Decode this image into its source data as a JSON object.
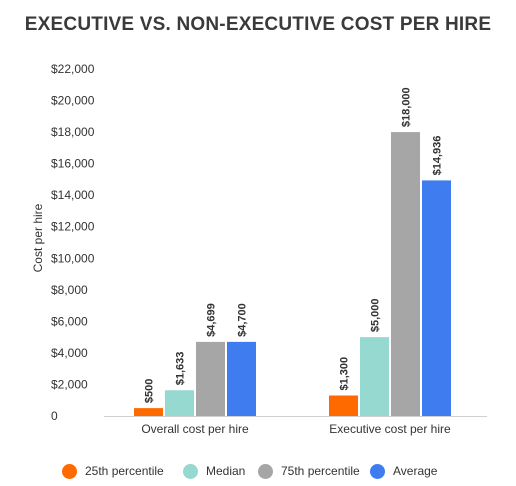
{
  "title": "EXECUTIVE VS. NON-EXECUTIVE COST PER HIRE",
  "chart_data": {
    "type": "bar",
    "title": "EXECUTIVE VS. NON-EXECUTIVE COST PER HIRE",
    "xlabel": "",
    "ylabel": "Cost per hire",
    "ylim": [
      0,
      22000
    ],
    "yticks": [
      0,
      2000,
      4000,
      6000,
      8000,
      10000,
      12000,
      14000,
      16000,
      18000,
      20000,
      22000
    ],
    "ytick_labels": [
      "0",
      "$2,000",
      "$4,000",
      "$6,000",
      "$8,000",
      "$10,000",
      "$12,000",
      "$14,000",
      "$16,000",
      "$18,000",
      "$20,000",
      "$22,000"
    ],
    "grid": false,
    "legend_position": "bottom",
    "categories": [
      "Overall cost per hire",
      "Executive cost per hire"
    ],
    "series": [
      {
        "name": "25th percentile",
        "color": "#ff6a00",
        "values": [
          500,
          1300
        ],
        "labels": [
          "$500",
          "$1,300"
        ]
      },
      {
        "name": "Median",
        "color": "#96d9d1",
        "values": [
          1633,
          5000
        ],
        "labels": [
          "$1,633",
          "$5,000"
        ]
      },
      {
        "name": "75th percentile",
        "color": "#a6a6a6",
        "values": [
          4699,
          18000
        ],
        "labels": [
          "$4,699",
          "$18,000"
        ]
      },
      {
        "name": "Average",
        "color": "#3f7cf0",
        "values": [
          4700,
          14936
        ],
        "labels": [
          "$4,700",
          "$14,936"
        ]
      }
    ]
  }
}
